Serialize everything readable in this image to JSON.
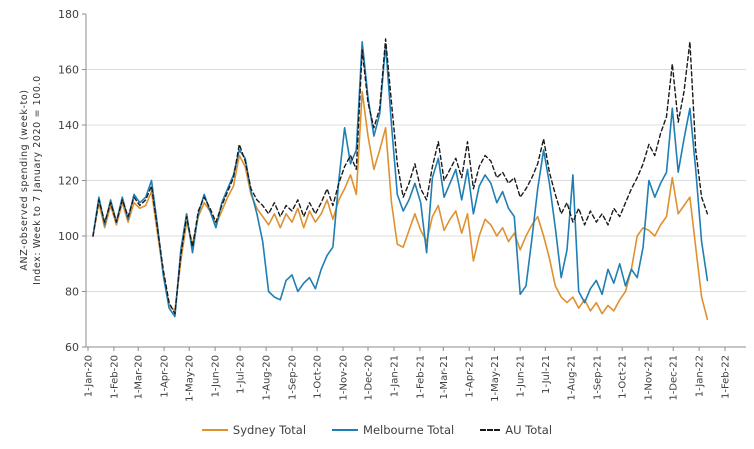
{
  "chart": {
    "ylabel_line1": "ANZ-observed spending (week-to)",
    "ylabel_line2": "Index: Week to 7 January 2020 = 100.0"
  },
  "colors": {
    "grid": "#dcdcdc",
    "axis": "#8c8c8c",
    "tick_text": "#3f3f3f",
    "sydney": "#e0912f",
    "melbourne": "#1f7eb4",
    "au": "#1a1a1a"
  },
  "chart_data": {
    "type": "line",
    "title": "",
    "xlabel": "",
    "ylabel": "ANZ-observed spending (week-to) — Index: Week to 7 January 2020 = 100.0",
    "ylim": [
      60,
      180
    ],
    "y_ticks": [
      60,
      80,
      100,
      120,
      140,
      160,
      180
    ],
    "grid": "horizontal",
    "legend_position": "bottom",
    "x_start_date": "2020-01-07",
    "x_step_days": 7,
    "x_tick_labels": [
      "1-Jan-20",
      "1-Feb-20",
      "1-Mar-20",
      "1-Apr-20",
      "1-May-20",
      "1-Jun-20",
      "1-Jul-20",
      "1-Aug-20",
      "1-Sep-20",
      "1-Oct-20",
      "1-Nov-20",
      "1-Dec-20",
      "1-Jan-21",
      "1-Feb-21",
      "1-Mar-21",
      "1-Apr-21",
      "1-May-21",
      "1-Jun-21",
      "1-Jul-21",
      "1-Aug-21",
      "1-Sep-21",
      "1-Oct-21",
      "1-Nov-21",
      "1-Dec-21",
      "1-Jan-22",
      "1-Feb-22"
    ],
    "series": [
      {
        "name": "Sydney Total",
        "color": "#e0912f",
        "style": "solid",
        "values": [
          100,
          112,
          103,
          111,
          104,
          112,
          105,
          112,
          110,
          111,
          116,
          101,
          87,
          75,
          73,
          91,
          105,
          97,
          107,
          112,
          109,
          104,
          109,
          114,
          118,
          129,
          125,
          115,
          110,
          107,
          104,
          108,
          103,
          108,
          105,
          110,
          103,
          109,
          105,
          108,
          113,
          106,
          113,
          117,
          122,
          115,
          152,
          136,
          124,
          131,
          139,
          112,
          97,
          96,
          102,
          108,
          102,
          98,
          107,
          111,
          102,
          106,
          109,
          101,
          108,
          91,
          100,
          106,
          104,
          100,
          103,
          98,
          101,
          95,
          100,
          104,
          107,
          100,
          92,
          82,
          78,
          76,
          78,
          74,
          77,
          73,
          76,
          72,
          75,
          73,
          77,
          80,
          88,
          100,
          103,
          102,
          100,
          104,
          107,
          121,
          108,
          111,
          114,
          96,
          78,
          70
        ]
      },
      {
        "name": "Melbourne Total",
        "color": "#1f7eb4",
        "style": "solid",
        "values": [
          100,
          114,
          104,
          113,
          105,
          114,
          106,
          115,
          112,
          114,
          120,
          104,
          86,
          74,
          71,
          95,
          108,
          94,
          108,
          115,
          109,
          103,
          112,
          117,
          122,
          131,
          128,
          116,
          108,
          98,
          80,
          78,
          77,
          84,
          86,
          80,
          83,
          85,
          81,
          88,
          93,
          96,
          120,
          139,
          126,
          131,
          170,
          150,
          136,
          144,
          169,
          140,
          115,
          109,
          113,
          119,
          112,
          94,
          121,
          128,
          114,
          119,
          124,
          113,
          124,
          108,
          118,
          122,
          119,
          112,
          116,
          110,
          107,
          79,
          82,
          99,
          117,
          131,
          119,
          103,
          85,
          95,
          122,
          80,
          76,
          81,
          84,
          79,
          88,
          83,
          90,
          82,
          88,
          85,
          96,
          120,
          114,
          119,
          123,
          146,
          123,
          135,
          146,
          124,
          98,
          84
        ]
      },
      {
        "name": "AU Total",
        "color": "#1a1a1a",
        "style": "dashed",
        "values": [
          100,
          113,
          105,
          112,
          105,
          113,
          107,
          114,
          111,
          113,
          118,
          103,
          88,
          76,
          72,
          93,
          107,
          96,
          109,
          114,
          110,
          105,
          111,
          116,
          121,
          133,
          127,
          117,
          113,
          111,
          108,
          112,
          107,
          111,
          109,
          113,
          107,
          112,
          108,
          112,
          117,
          111,
          119,
          125,
          129,
          124,
          167,
          148,
          139,
          146,
          171,
          148,
          126,
          114,
          119,
          126,
          117,
          113,
          125,
          134,
          120,
          124,
          128,
          121,
          134,
          117,
          125,
          129,
          127,
          121,
          123,
          119,
          121,
          114,
          117,
          121,
          126,
          135,
          123,
          115,
          108,
          112,
          105,
          110,
          104,
          109,
          105,
          108,
          104,
          110,
          107,
          112,
          117,
          121,
          126,
          133,
          129,
          137,
          143,
          162,
          141,
          152,
          170,
          131,
          114,
          108
        ]
      }
    ]
  }
}
